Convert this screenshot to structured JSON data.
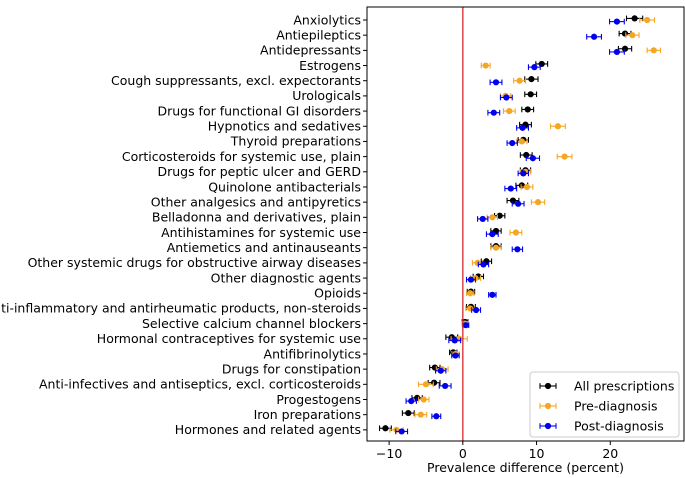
{
  "chart_data": {
    "type": "scatter",
    "xlabel": "Prevalence difference (percent)",
    "ylabel": "",
    "xlim": [
      -13,
      30
    ],
    "xticks": [
      -10,
      0,
      10,
      20
    ],
    "xtick_labels": [
      "−10",
      "0",
      "10",
      "20"
    ],
    "reference_line": {
      "x": 0,
      "color": "#d62728"
    },
    "legend_position": "bottom-right",
    "categories": [
      "Anxiolytics",
      "Antiepileptics",
      "Antidepressants",
      "Estrogens",
      "Cough suppressants, excl. expectorants",
      "Urologicals",
      "Drugs for functional GI disorders",
      "Hypnotics and sedatives",
      "Thyroid preparations",
      "Corticosteroids for systemic use, plain",
      "Drugs for peptic ulcer and GERD",
      "Quinolone antibacterials",
      "Other analgesics and antipyretics",
      "Belladonna and derivatives, plain",
      "Antihistamines for systemic use",
      "Antiemetics and antinauseants",
      "Other systemic drugs for obstructive airway diseases",
      "Other diagnostic agents",
      "Opioids",
      "Anti-inflammatory and antirheumatic products, non-steroids",
      "Selective calcium channel blockers",
      "Hormonal contraceptives for systemic use",
      "Antifibrinolytics",
      "Drugs for constipation",
      "Anti-infectives and antiseptics, excl. corticosteroids",
      "Progestogens",
      "Iron preparations",
      "Hormones and related agents"
    ],
    "series": [
      {
        "name": "All prescriptions",
        "color": "#000000",
        "values": [
          23.3,
          22.0,
          22.0,
          10.7,
          9.3,
          9.2,
          8.8,
          8.5,
          8.2,
          8.6,
          8.5,
          8.0,
          6.8,
          5.0,
          4.5,
          4.5,
          3.2,
          2.1,
          1.1,
          1.1,
          0.3,
          -1.5,
          -1.3,
          -3.8,
          -3.9,
          -6.2,
          -7.4,
          -10.5
        ],
        "errors": [
          1.1,
          0.8,
          0.9,
          0.8,
          0.9,
          0.8,
          0.8,
          0.8,
          0.7,
          0.8,
          0.7,
          0.8,
          0.8,
          0.7,
          0.7,
          0.7,
          0.7,
          0.7,
          0.5,
          0.6,
          0.4,
          0.8,
          0.5,
          0.7,
          0.8,
          0.7,
          0.8,
          0.8
        ]
      },
      {
        "name": "Pre-diagnosis",
        "color": "#f5a623",
        "values": [
          25.0,
          23.0,
          25.9,
          3.1,
          7.7,
          5.8,
          6.3,
          12.9,
          8.0,
          13.8,
          8.5,
          8.7,
          10.2,
          4.0,
          7.2,
          4.5,
          2.0,
          1.7,
          1.0,
          1.0,
          0.3,
          -0.5,
          -1.0,
          -2.8,
          -5.0,
          -5.3,
          -5.7,
          -9.0
        ],
        "errors": [
          1.0,
          0.9,
          0.9,
          0.6,
          0.8,
          0.7,
          0.8,
          1.0,
          0.7,
          1.0,
          0.7,
          0.8,
          0.9,
          0.7,
          0.8,
          0.7,
          0.7,
          0.7,
          0.5,
          0.6,
          0.4,
          1.1,
          0.5,
          0.8,
          1.0,
          0.7,
          0.8,
          0.9
        ]
      },
      {
        "name": "Post-diagnosis",
        "color": "#0000ee",
        "values": [
          20.9,
          17.8,
          20.9,
          9.7,
          4.5,
          5.9,
          4.2,
          8.1,
          6.7,
          9.5,
          8.2,
          6.5,
          7.5,
          2.7,
          4.0,
          7.4,
          2.8,
          1.1,
          4.0,
          1.8,
          0.4,
          -1.1,
          -1.0,
          -3.0,
          -2.4,
          -7.0,
          -3.6,
          -8.3
        ],
        "errors": [
          1.0,
          1.0,
          1.0,
          0.8,
          0.8,
          0.8,
          0.8,
          0.8,
          0.7,
          0.9,
          0.7,
          0.8,
          0.8,
          0.7,
          0.8,
          0.7,
          0.7,
          0.6,
          0.5,
          0.6,
          0.4,
          0.8,
          0.5,
          0.7,
          0.8,
          0.7,
          0.6,
          0.8
        ]
      }
    ]
  }
}
